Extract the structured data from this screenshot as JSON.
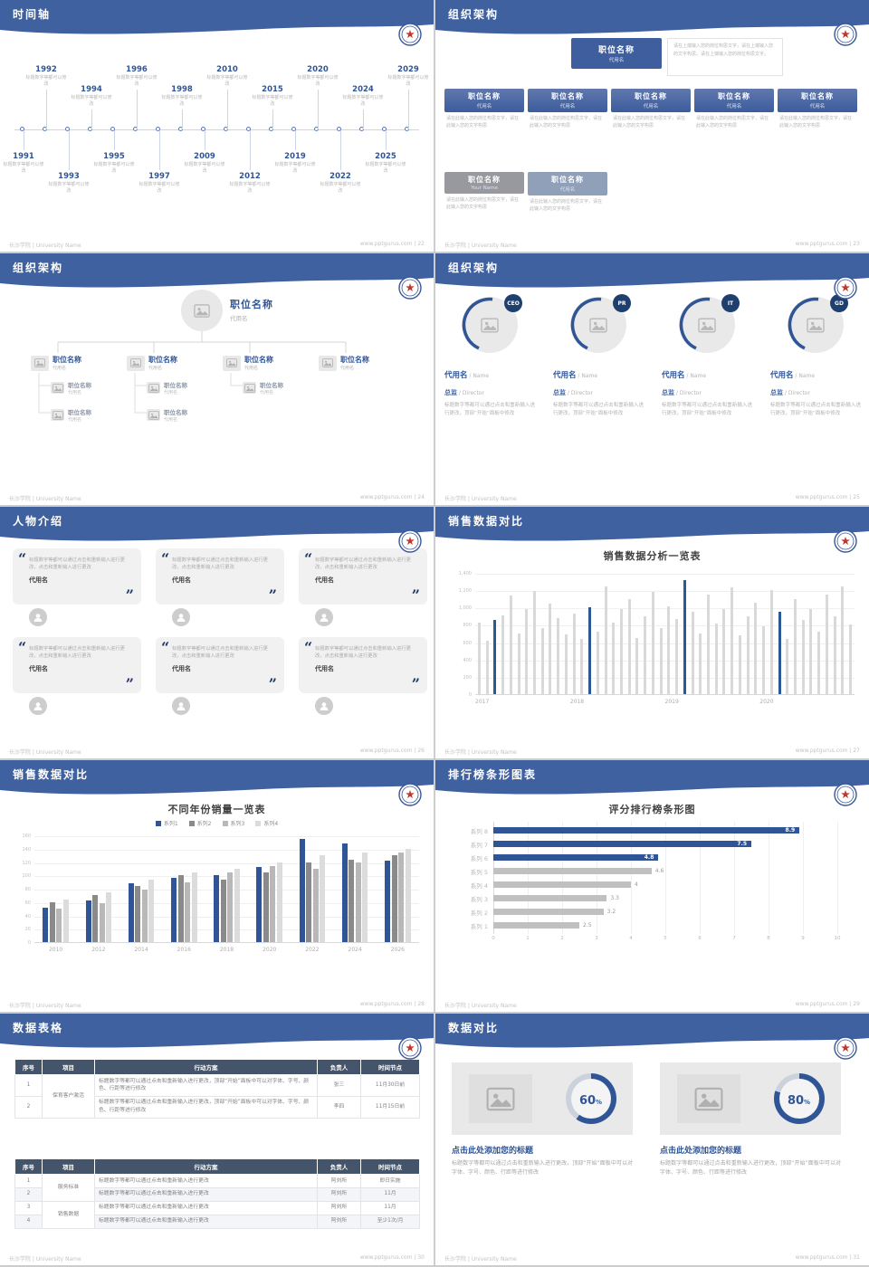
{
  "common": {
    "footer_left": "长沙学院 | University Name",
    "footer_site": "www.pptgurus.com",
    "sep": " | ",
    "slash": " / ",
    "accent": "#40619f"
  },
  "s22": {
    "slug": "timeline",
    "title": "时间轴",
    "page": "22",
    "caption": "标题数字等都可以修改",
    "years": [
      "1991",
      "1992",
      "1993",
      "1994",
      "1995",
      "1996",
      "1997",
      "1998",
      "2009",
      "2010",
      "2012",
      "2015",
      "2019",
      "2020",
      "2022",
      "2024",
      "2025",
      "2029"
    ]
  },
  "s23": {
    "slug": "org-structure",
    "title": "组织架构",
    "page": "23",
    "top": {
      "role": "职位名称",
      "name": "代用名",
      "note": "请在上端输入您的岗位构思文字，请在上端输入您的文字构思。请在上端输入您的岗位构思文字。"
    },
    "level2": [
      {
        "role": "职位名称",
        "name": "代用名",
        "desc": "请在此输入您的岗位构思文字，请在此输入您的文字构思"
      },
      {
        "role": "职位名称",
        "name": "代用名",
        "desc": "请在此输入您的岗位构思文字，请在此输入您的文字构思"
      },
      {
        "role": "职位名称",
        "name": "代用名",
        "desc": "请在此输入您的岗位构思文字，请在此输入您的文字构思"
      },
      {
        "role": "职位名称",
        "name": "代用名",
        "desc": "请在此输入您的岗位构思文字，请在此输入您的文字构思"
      },
      {
        "role": "职位名称",
        "name": "代用名",
        "desc": "请在此输入您的岗位构思文字，请在此输入您的文字构思"
      }
    ],
    "level3": [
      {
        "role": "职位名称",
        "name": "Your Name",
        "style": "gray",
        "desc": "请在此输入您的岗位构思文字，请在此输入您的文字构思"
      },
      {
        "role": "职位名称",
        "name": "代用名",
        "style": "slate",
        "desc": "请在此输入您的岗位构思文字，请在此输入您的文字构思"
      }
    ]
  },
  "s24": {
    "slug": "org-tree",
    "title": "组织架构",
    "page": "24",
    "root": {
      "role": "职位名称",
      "name": "代用名"
    },
    "branches": [
      {
        "role": "职位名称",
        "name": "代用名",
        "children": [
          {
            "role": "职位名称",
            "name": "代用名"
          },
          {
            "role": "职位名称",
            "name": "代用名"
          }
        ]
      },
      {
        "role": "职位名称",
        "name": "代用名",
        "children": [
          {
            "role": "职位名称",
            "name": "代用名"
          },
          {
            "role": "职位名称",
            "name": "代用名"
          }
        ]
      },
      {
        "role": "职位名称",
        "name": "代用名",
        "children": [
          {
            "role": "职位名称",
            "name": "代用名"
          }
        ]
      },
      {
        "role": "职位名称",
        "name": "代用名",
        "children": []
      }
    ]
  },
  "s25": {
    "slug": "org-roles",
    "title": "组织架构",
    "page": "25",
    "members": [
      {
        "badge": "CEO",
        "name": "代用名",
        "name_en": "Name",
        "role": "总监",
        "role_en": "Director",
        "desc": "标题数字等都可以通过点击和重新输入进行更改，顶部“开始”面板中修改"
      },
      {
        "badge": "PR",
        "name": "代用名",
        "name_en": "Name",
        "role": "总监",
        "role_en": "Director",
        "desc": "标题数字等都可以通过点击和重新输入进行更改，顶部“开始”面板中修改"
      },
      {
        "badge": "IT",
        "name": "代用名",
        "name_en": "Name",
        "role": "总监",
        "role_en": "Director",
        "desc": "标题数字等都可以通过点击和重新输入进行更改，顶部“开始”面板中修改"
      },
      {
        "badge": "GD",
        "name": "代用名",
        "name_en": "Name",
        "role": "总监",
        "role_en": "Director",
        "desc": "标题数字等都可以通过点击和重新输入进行更改，顶部“开始”面板中修改"
      }
    ]
  },
  "s26": {
    "slug": "people",
    "title": "人物介绍",
    "page": "26",
    "quote_open": "“",
    "quote_close": "”",
    "cards": [
      {
        "quote": "标题数字等都可以通过点击和重新输入进行更改，点击和重新输入进行更改",
        "name": "代用名"
      },
      {
        "quote": "标题数字等都可以通过点击和重新输入进行更改，点击和重新输入进行更改",
        "name": "代用名"
      },
      {
        "quote": "标题数字等都可以通过点击和重新输入进行更改，点击和重新输入进行更改",
        "name": "代用名"
      },
      {
        "quote": "标题数字等都可以通过点击和重新输入进行更改，点击和重新输入进行更改",
        "name": "代用名"
      },
      {
        "quote": "标题数字等都可以通过点击和重新输入进行更改，点击和重新输入进行更改",
        "name": "代用名"
      },
      {
        "quote": "标题数字等都可以通过点击和重新输入进行更改，点击和重新输入进行更改",
        "name": "代用名"
      }
    ]
  },
  "s27": {
    "slug": "sales-bars",
    "title": "销售数据对比",
    "page": "27"
  },
  "s28": {
    "slug": "sales-series",
    "title": "销售数据对比",
    "page": "28"
  },
  "s29": {
    "slug": "ranking",
    "title": "排行榜条形图表",
    "page": "29"
  },
  "s30": {
    "slug": "tables",
    "title": "数据表格",
    "page": "30",
    "table1": {
      "headers": [
        "序号",
        "项目",
        "行动方案",
        "负责人",
        "时间节点"
      ],
      "rows": [
        {
          "no": "1",
          "project": "保育客户激活",
          "span": 2,
          "plan": "标题数字等都可以通过点击和重新输入进行更改，顶部“开始”面板中可以对字体、字号、颜色、行距等进行修改",
          "owner": "张三",
          "time": "11月30日前"
        },
        {
          "no": "2",
          "plan": "标题数字等都可以通过点击和重新输入进行更改，顶部“开始”面板中可以对字体、字号、颜色、行距等进行修改",
          "owner": "李四",
          "time": "11月15日前"
        }
      ]
    },
    "table2": {
      "headers": [
        "序号",
        "项目",
        "行动方案",
        "负责人",
        "时间节点"
      ],
      "rows": [
        {
          "no": "1",
          "project": "服务标准",
          "span": 2,
          "plan": "标题数字等都可以通过点击和重新输入进行更改",
          "owner": "阿刘所",
          "time": "即日实施"
        },
        {
          "no": "2",
          "plan": "标题数字等都可以通过点击和重新输入进行更改",
          "owner": "阿刘所",
          "time": "11月"
        },
        {
          "no": "3",
          "project": "销售数据",
          "span": 2,
          "plan": "标题数字等都可以通过点击和重新输入进行更改",
          "owner": "阿刘所",
          "time": "11月"
        },
        {
          "no": "4",
          "plan": "标题数字等都可以通过点击和重新输入进行更改",
          "owner": "阿刘所",
          "time": "至少1次/月"
        }
      ]
    }
  },
  "s31": {
    "slug": "compare",
    "title": "数据对比",
    "page": "31",
    "panels": [
      {
        "percent": 60,
        "unit": "%",
        "heading": "点击此处添加您的标题",
        "desc": "标题数字等都可以通过点击和重新输入进行更改，顶部“开始”面板中可以对字体、字号、颜色、行距等进行修改"
      },
      {
        "percent": 80,
        "unit": "%",
        "heading": "点击此处添加您的标题",
        "desc": "标题数字等都可以通过点击和重新输入进行更改，顶部“开始”面板中可以对字体、字号、颜色、行距等进行修改"
      }
    ]
  },
  "chart_data": [
    {
      "slide": "27",
      "type": "bar",
      "title": "销售数据分析一览表",
      "x_groups": [
        "2017",
        "2018",
        "2019",
        "2020"
      ],
      "values": [
        830,
        620,
        860,
        910,
        1140,
        700,
        980,
        1190,
        760,
        1050,
        880,
        690,
        930,
        640,
        1000,
        720,
        1240,
        830,
        980,
        1100,
        650,
        900,
        1180,
        760,
        1010,
        870,
        1320,
        950,
        700,
        1150,
        820,
        980,
        1230,
        680,
        900,
        1060,
        780,
        1200,
        950,
        640,
        1100,
        860,
        980,
        720,
        1150,
        900,
        1240,
        800
      ],
      "highlight_indices": [
        2,
        14,
        26,
        38
      ],
      "bar_color": "#d9d9d9",
      "highlight_color": "#2a5a94",
      "ylim": [
        0,
        1400
      ],
      "ytick_step": 200,
      "grid": true,
      "legend": "none"
    },
    {
      "slide": "28",
      "type": "bar",
      "title": "不同年份销量一览表",
      "categories": [
        "2010",
        "2012",
        "2014",
        "2016",
        "2018",
        "2020",
        "2022",
        "2024",
        "2026"
      ],
      "series": [
        {
          "name": "系列1",
          "color": "#2f5597",
          "values": [
            52,
            62,
            88,
            96,
            100,
            112,
            155,
            148,
            122
          ]
        },
        {
          "name": "系列2",
          "color": "#8a8a8a",
          "values": [
            60,
            70,
            84,
            100,
            94,
            104,
            120,
            124,
            130
          ]
        },
        {
          "name": "系列3",
          "color": "#b8b8b8",
          "values": [
            50,
            58,
            78,
            90,
            104,
            114,
            110,
            120,
            134
          ]
        },
        {
          "name": "系列4",
          "color": "#dcdcdc",
          "values": [
            64,
            74,
            94,
            104,
            110,
            120,
            130,
            134,
            140
          ]
        }
      ],
      "ylim": [
        0,
        160
      ],
      "ytick_step": 20,
      "grid": true,
      "legend": "top"
    },
    {
      "slide": "29",
      "type": "bar",
      "orientation": "horizontal",
      "title": "评分排行榜条形图",
      "categories": [
        "系列 8",
        "系列 7",
        "系列 6",
        "系列 5",
        "系列 4",
        "系列 3",
        "系列 2",
        "系列 1"
      ],
      "values": [
        8.9,
        7.5,
        4.8,
        4.6,
        4,
        3.3,
        3.2,
        2.5
      ],
      "colors": [
        "#2f5597",
        "#2f5597",
        "#2f5597",
        "#c0c0c0",
        "#c0c0c0",
        "#c0c0c0",
        "#c0c0c0",
        "#c0c0c0"
      ],
      "xlim": [
        0,
        10
      ],
      "xtick_step": 1,
      "grid": true,
      "legend": "none"
    },
    {
      "slide": "31",
      "type": "pie",
      "subtype": "donut",
      "values": [
        60,
        80
      ],
      "unit": "%",
      "color": "#2f5597",
      "track_color": "#ccd2dd"
    }
  ]
}
